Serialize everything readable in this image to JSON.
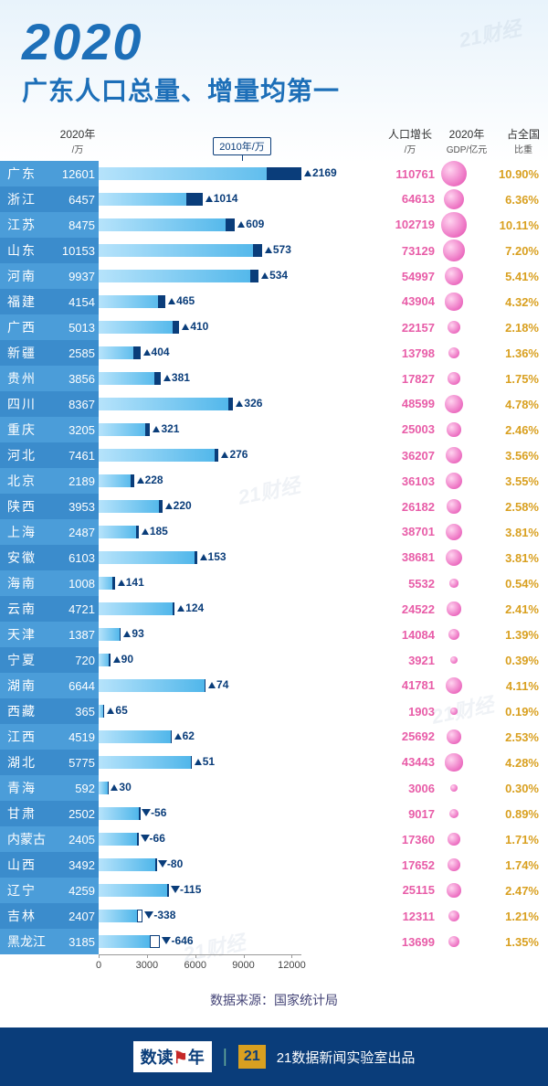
{
  "header": {
    "year": "2020",
    "title": "广东人口总量、增量均第一"
  },
  "columns": {
    "pop2020": "2020年",
    "pop2020_unit": "/万",
    "barLegend": "2010年/万",
    "growth": "人口增长",
    "growth_unit": "/万",
    "gdp": "2020年",
    "gdp_unit": "GDP/亿元",
    "pct": "占全国",
    "pct_unit": "比重"
  },
  "chart": {
    "xMax": 12601,
    "xTicks": [
      0,
      3000,
      6000,
      9000,
      12000
    ],
    "barAreaPx": 222,
    "barGradientStart": "#b6e3fb",
    "barGradientEnd": "#4fb6ea",
    "overlayColor": "#0a3d7a",
    "gdpColor": "#e85da8",
    "pctColor": "#d9a020",
    "bubbleMaxGDP": 110761,
    "bubbleMaxDiameter": 28,
    "bubbleMinDiameter": 4
  },
  "rows": [
    {
      "prov": "广东",
      "pop2020": 12601,
      "growth": 2169,
      "gdp": 110761,
      "pct": "10.90%"
    },
    {
      "prov": "浙江",
      "pop2020": 6457,
      "growth": 1014,
      "gdp": 64613,
      "pct": "6.36%"
    },
    {
      "prov": "江苏",
      "pop2020": 8475,
      "growth": 609,
      "gdp": 102719,
      "pct": "10.11%"
    },
    {
      "prov": "山东",
      "pop2020": 10153,
      "growth": 573,
      "gdp": 73129,
      "pct": "7.20%"
    },
    {
      "prov": "河南",
      "pop2020": 9937,
      "growth": 534,
      "gdp": 54997,
      "pct": "5.41%"
    },
    {
      "prov": "福建",
      "pop2020": 4154,
      "growth": 465,
      "gdp": 43904,
      "pct": "4.32%"
    },
    {
      "prov": "广西",
      "pop2020": 5013,
      "growth": 410,
      "gdp": 22157,
      "pct": "2.18%"
    },
    {
      "prov": "新疆",
      "pop2020": 2585,
      "growth": 404,
      "gdp": 13798,
      "pct": "1.36%"
    },
    {
      "prov": "贵州",
      "pop2020": 3856,
      "growth": 381,
      "gdp": 17827,
      "pct": "1.75%"
    },
    {
      "prov": "四川",
      "pop2020": 8367,
      "growth": 326,
      "gdp": 48599,
      "pct": "4.78%"
    },
    {
      "prov": "重庆",
      "pop2020": 3205,
      "growth": 321,
      "gdp": 25003,
      "pct": "2.46%"
    },
    {
      "prov": "河北",
      "pop2020": 7461,
      "growth": 276,
      "gdp": 36207,
      "pct": "3.56%"
    },
    {
      "prov": "北京",
      "pop2020": 2189,
      "growth": 228,
      "gdp": 36103,
      "pct": "3.55%"
    },
    {
      "prov": "陕西",
      "pop2020": 3953,
      "growth": 220,
      "gdp": 26182,
      "pct": "2.58%"
    },
    {
      "prov": "上海",
      "pop2020": 2487,
      "growth": 185,
      "gdp": 38701,
      "pct": "3.81%"
    },
    {
      "prov": "安徽",
      "pop2020": 6103,
      "growth": 153,
      "gdp": 38681,
      "pct": "3.81%"
    },
    {
      "prov": "海南",
      "pop2020": 1008,
      "growth": 141,
      "gdp": 5532,
      "pct": "0.54%"
    },
    {
      "prov": "云南",
      "pop2020": 4721,
      "growth": 124,
      "gdp": 24522,
      "pct": "2.41%"
    },
    {
      "prov": "天津",
      "pop2020": 1387,
      "growth": 93,
      "gdp": 14084,
      "pct": "1.39%"
    },
    {
      "prov": "宁夏",
      "pop2020": 720,
      "growth": 90,
      "gdp": 3921,
      "pct": "0.39%"
    },
    {
      "prov": "湖南",
      "pop2020": 6644,
      "growth": 74,
      "gdp": 41781,
      "pct": "4.11%"
    },
    {
      "prov": "西藏",
      "pop2020": 365,
      "growth": 65,
      "gdp": 1903,
      "pct": "0.19%"
    },
    {
      "prov": "江西",
      "pop2020": 4519,
      "growth": 62,
      "gdp": 25692,
      "pct": "2.53%"
    },
    {
      "prov": "湖北",
      "pop2020": 5775,
      "growth": 51,
      "gdp": 43443,
      "pct": "4.28%"
    },
    {
      "prov": "青海",
      "pop2020": 592,
      "growth": 30,
      "gdp": 3006,
      "pct": "0.30%"
    },
    {
      "prov": "甘肃",
      "pop2020": 2502,
      "growth": -56,
      "gdp": 9017,
      "pct": "0.89%"
    },
    {
      "prov": "内蒙古",
      "pop2020": 2405,
      "growth": -66,
      "gdp": 17360,
      "pct": "1.71%"
    },
    {
      "prov": "山西",
      "pop2020": 3492,
      "growth": -80,
      "gdp": 17652,
      "pct": "1.74%"
    },
    {
      "prov": "辽宁",
      "pop2020": 4259,
      "growth": -115,
      "gdp": 25115,
      "pct": "2.47%"
    },
    {
      "prov": "吉林",
      "pop2020": 2407,
      "growth": -338,
      "gdp": 12311,
      "pct": "1.21%"
    },
    {
      "prov": "黑龙江",
      "pop2020": 3185,
      "growth": -646,
      "gdp": 13699,
      "pct": "1.35%"
    }
  ],
  "source": "数据来源：国家统计局",
  "footer": {
    "badge1": "数读",
    "badge1b": "年",
    "badge2": "21",
    "text": "21数据新闻实验室出品"
  },
  "watermark": "21财经"
}
